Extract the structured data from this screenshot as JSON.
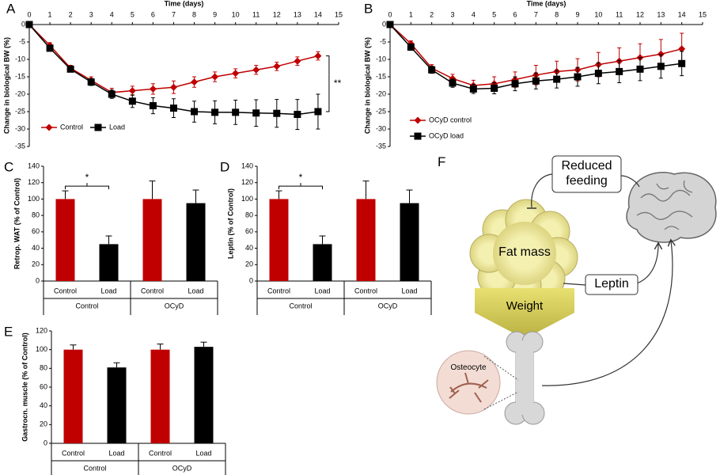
{
  "chart_data": [
    {
      "panel": "A",
      "type": "line",
      "x_label": "Time (days)",
      "y_label": "Change in biological BW (%)",
      "x": [
        0,
        1,
        2,
        3,
        4,
        5,
        6,
        7,
        8,
        9,
        10,
        11,
        12,
        13,
        14
      ],
      "xlim": [
        0,
        15
      ],
      "xticks": [
        0,
        1,
        2,
        3,
        4,
        5,
        6,
        7,
        8,
        9,
        10,
        11,
        12,
        13,
        14,
        15
      ],
      "ylim": [
        -35,
        0
      ],
      "yticks": [
        0,
        -5,
        -10,
        -15,
        -20,
        -25,
        -30,
        -35
      ],
      "legend": "lower left",
      "annotation": "**",
      "series": [
        {
          "name": "Control",
          "color": "#c00000",
          "marker": "diamond",
          "values": [
            0,
            -6,
            -12.5,
            -16,
            -19.5,
            -19,
            -18.5,
            -18,
            -16.5,
            -15,
            -14,
            -13,
            -12,
            -10.5,
            -9
          ],
          "errors": [
            0.3,
            0.8,
            0.8,
            1,
            1.2,
            1.3,
            1.5,
            1.8,
            1.5,
            1.4,
            1.3,
            1.3,
            1.2,
            1.2,
            1.2
          ]
        },
        {
          "name": "Load",
          "color": "#000000",
          "marker": "square",
          "values": [
            0,
            -6.8,
            -12.8,
            -16.5,
            -20,
            -22,
            -23.3,
            -24,
            -25,
            -25.2,
            -25.2,
            -25.4,
            -25.5,
            -25.8,
            -25
          ],
          "errors": [
            0.3,
            0.8,
            0.8,
            1,
            1.2,
            1.8,
            2.3,
            2.7,
            3,
            3.3,
            3.5,
            3.8,
            4,
            4.3,
            5
          ]
        }
      ]
    },
    {
      "panel": "B",
      "type": "line",
      "x_label": "Time (days)",
      "y_label": "Change in biological BW (%)",
      "x": [
        0,
        1,
        2,
        3,
        4,
        5,
        6,
        7,
        8,
        9,
        10,
        11,
        12,
        13,
        14
      ],
      "xlim": [
        0,
        15
      ],
      "xticks": [
        0,
        1,
        2,
        3,
        4,
        5,
        6,
        7,
        8,
        9,
        10,
        11,
        12,
        13,
        14,
        15
      ],
      "ylim": [
        -35,
        0
      ],
      "yticks": [
        0,
        -5,
        -10,
        -15,
        -20,
        -25,
        -30,
        -35
      ],
      "legend": "lower left",
      "series": [
        {
          "name": "OCyD control",
          "color": "#c00000",
          "marker": "diamond",
          "values": [
            0,
            -5.5,
            -12.5,
            -15.5,
            -17.5,
            -17,
            -15.8,
            -14.5,
            -13.5,
            -13,
            -11.5,
            -10.5,
            -9.5,
            -8.5,
            -7
          ],
          "errors": [
            0.3,
            0.8,
            1,
            1.2,
            1.5,
            2,
            2.2,
            2.8,
            3,
            3.2,
            3.5,
            3.8,
            4,
            4.2,
            4.5
          ]
        },
        {
          "name": "OCyD load",
          "color": "#000000",
          "marker": "square",
          "values": [
            0,
            -6.5,
            -13,
            -16.8,
            -18.5,
            -18.3,
            -17,
            -16.2,
            -15.7,
            -15,
            -14,
            -13.5,
            -12.8,
            -12,
            -11.2
          ],
          "errors": [
            0.3,
            0.8,
            1,
            1.2,
            1.3,
            1.6,
            2,
            2.3,
            2.5,
            2.7,
            3,
            3.2,
            3.3,
            3.4,
            3.5
          ]
        }
      ]
    },
    {
      "panel": "C",
      "type": "bar",
      "y_label": "Retrop. WAT (% of Control)",
      "categories": [
        "Control",
        "Load",
        "Control",
        "Load"
      ],
      "groups": [
        "Control",
        "OCyD"
      ],
      "values": [
        100,
        45,
        100,
        95
      ],
      "errors": [
        10,
        10,
        22,
        16
      ],
      "colors": [
        "#c00000",
        "#000000",
        "#c00000",
        "#000000"
      ],
      "ylim": [
        0,
        140
      ],
      "yticks": [
        0,
        20,
        40,
        60,
        80,
        100,
        120,
        140
      ],
      "annotation": "*"
    },
    {
      "panel": "D",
      "type": "bar",
      "y_label": "Leptin (% of Control)",
      "categories": [
        "Control",
        "Load",
        "Control",
        "Load"
      ],
      "groups": [
        "Control",
        "OCyD"
      ],
      "values": [
        100,
        45,
        100,
        95
      ],
      "errors": [
        10,
        10,
        22,
        16
      ],
      "colors": [
        "#c00000",
        "#000000",
        "#c00000",
        "#000000"
      ],
      "ylim": [
        0,
        140
      ],
      "yticks": [
        0,
        20,
        40,
        60,
        80,
        100,
        120,
        140
      ],
      "annotation": "*"
    },
    {
      "panel": "E",
      "type": "bar",
      "y_label": "Gastrocn. muscle (% of Control)",
      "categories": [
        "Control",
        "Load",
        "Control",
        "Load"
      ],
      "groups": [
        "Control",
        "OCyD"
      ],
      "values": [
        100,
        81,
        100,
        103
      ],
      "errors": [
        5,
        5,
        6,
        5
      ],
      "colors": [
        "#c00000",
        "#000000",
        "#c00000",
        "#000000"
      ],
      "ylim": [
        0,
        120
      ],
      "yticks": [
        0,
        20,
        40,
        60,
        80,
        100,
        120
      ]
    }
  ],
  "diagram": {
    "panel": "F",
    "nodes": [
      {
        "label": "Reduced feeding"
      },
      {
        "label": "Fat mass"
      },
      {
        "label": "Leptin"
      },
      {
        "label": "Weight"
      },
      {
        "label": "Osteocyte"
      }
    ]
  }
}
